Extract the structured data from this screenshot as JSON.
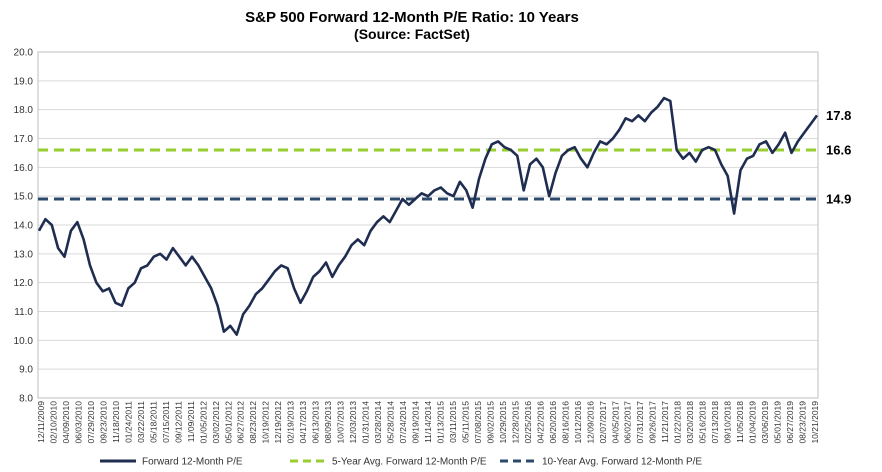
{
  "chart_data": {
    "type": "line",
    "title": "S&P 500 Forward 12-Month P/E Ratio: 10 Years",
    "subtitle": "(Source: FactSet)",
    "xlabel": "",
    "ylabel": "",
    "ylim": [
      8.0,
      20.0
    ],
    "yticks": [
      8.0,
      9.0,
      10.0,
      11.0,
      12.0,
      13.0,
      14.0,
      15.0,
      16.0,
      17.0,
      18.0,
      19.0,
      20.0
    ],
    "ytick_labels": [
      "8.0",
      "9.0",
      "10.0",
      "11.0",
      "12.0",
      "13.0",
      "14.0",
      "15.0",
      "16.0",
      "17.0",
      "18.0",
      "19.0",
      "20.0"
    ],
    "x_tick_labels": [
      "12/11/2009",
      "02/10/2010",
      "04/09/2010",
      "06/03/2010",
      "07/29/2010",
      "09/23/2010",
      "11/18/2010",
      "01/24/2011",
      "03/22/2011",
      "05/18/2011",
      "07/15/2011",
      "09/12/2011",
      "11/09/2011",
      "01/05/2012",
      "03/02/2012",
      "05/01/2012",
      "06/27/2012",
      "08/23/2012",
      "10/19/2012",
      "12/19/2012",
      "02/19/2013",
      "04/17/2013",
      "06/13/2013",
      "08/09/2013",
      "10/07/2013",
      "12/03/2013",
      "01/31/2014",
      "03/28/2014",
      "05/28/2014",
      "07/24/2014",
      "09/19/2014",
      "11/14/2014",
      "01/13/2015",
      "03/11/2015",
      "05/11/2015",
      "07/08/2015",
      "09/02/2015",
      "10/29/2015",
      "12/28/2015",
      "02/25/2016",
      "04/22/2016",
      "06/20/2016",
      "08/16/2016",
      "10/12/2016",
      "12/09/2016",
      "02/07/2017",
      "04/05/2017",
      "06/02/2017",
      "07/31/2017",
      "09/26/2017",
      "11/21/2017",
      "01/22/2018",
      "03/20/2018",
      "05/16/2018",
      "07/13/2018",
      "09/10/2018",
      "11/05/2018",
      "01/04/2019",
      "03/06/2019",
      "05/01/2019",
      "06/27/2019",
      "08/23/2019",
      "10/21/2019"
    ],
    "series": [
      {
        "name": "Forward 12-Month P/E",
        "color": "#1f2d50",
        "style": "solid",
        "values": [
          13.8,
          14.2,
          14.0,
          13.2,
          12.9,
          13.8,
          14.1,
          13.5,
          12.6,
          12.0,
          11.7,
          11.8,
          11.3,
          11.2,
          11.8,
          12.0,
          12.5,
          12.6,
          12.9,
          13.0,
          12.8,
          13.2,
          12.9,
          12.6,
          12.9,
          12.6,
          12.2,
          11.8,
          11.2,
          10.3,
          10.5,
          10.2,
          10.9,
          11.2,
          11.6,
          11.8,
          12.1,
          12.4,
          12.6,
          12.5,
          11.8,
          11.3,
          11.7,
          12.2,
          12.4,
          12.7,
          12.2,
          12.6,
          12.9,
          13.3,
          13.5,
          13.3,
          13.8,
          14.1,
          14.3,
          14.1,
          14.5,
          14.9,
          14.7,
          14.9,
          15.1,
          15.0,
          15.2,
          15.3,
          15.1,
          15.0,
          15.5,
          15.2,
          14.6,
          15.6,
          16.3,
          16.8,
          16.9,
          16.7,
          16.6,
          16.4,
          15.2,
          16.1,
          16.3,
          16.0,
          15.0,
          15.8,
          16.4,
          16.6,
          16.7,
          16.3,
          16.0,
          16.5,
          16.9,
          16.8,
          17.0,
          17.3,
          17.7,
          17.6,
          17.8,
          17.6,
          17.9,
          18.1,
          18.4,
          18.3,
          16.6,
          16.3,
          16.5,
          16.2,
          16.6,
          16.7,
          16.6,
          16.1,
          15.7,
          14.4,
          15.9,
          16.3,
          16.4,
          16.8,
          16.9,
          16.5,
          16.8,
          17.2,
          16.5,
          16.9,
          17.2,
          17.5,
          17.8
        ]
      },
      {
        "name": "5-Year Avg. Forward 12-Month P/E",
        "color": "#9acd32",
        "style": "dashed",
        "value": 16.6
      },
      {
        "name": "10-Year Avg. Forward 12-Month P/E",
        "color": "#2e4a6b",
        "style": "dashed",
        "value": 14.9
      }
    ],
    "end_labels": [
      "17.8",
      "16.6",
      "14.9"
    ],
    "legend": [
      "Forward 12-Month P/E",
      "5-Year Avg. Forward 12-Month P/E",
      "10-Year Avg. Forward 12-Month P/E"
    ],
    "legend_position": "bottom",
    "grid": true
  }
}
